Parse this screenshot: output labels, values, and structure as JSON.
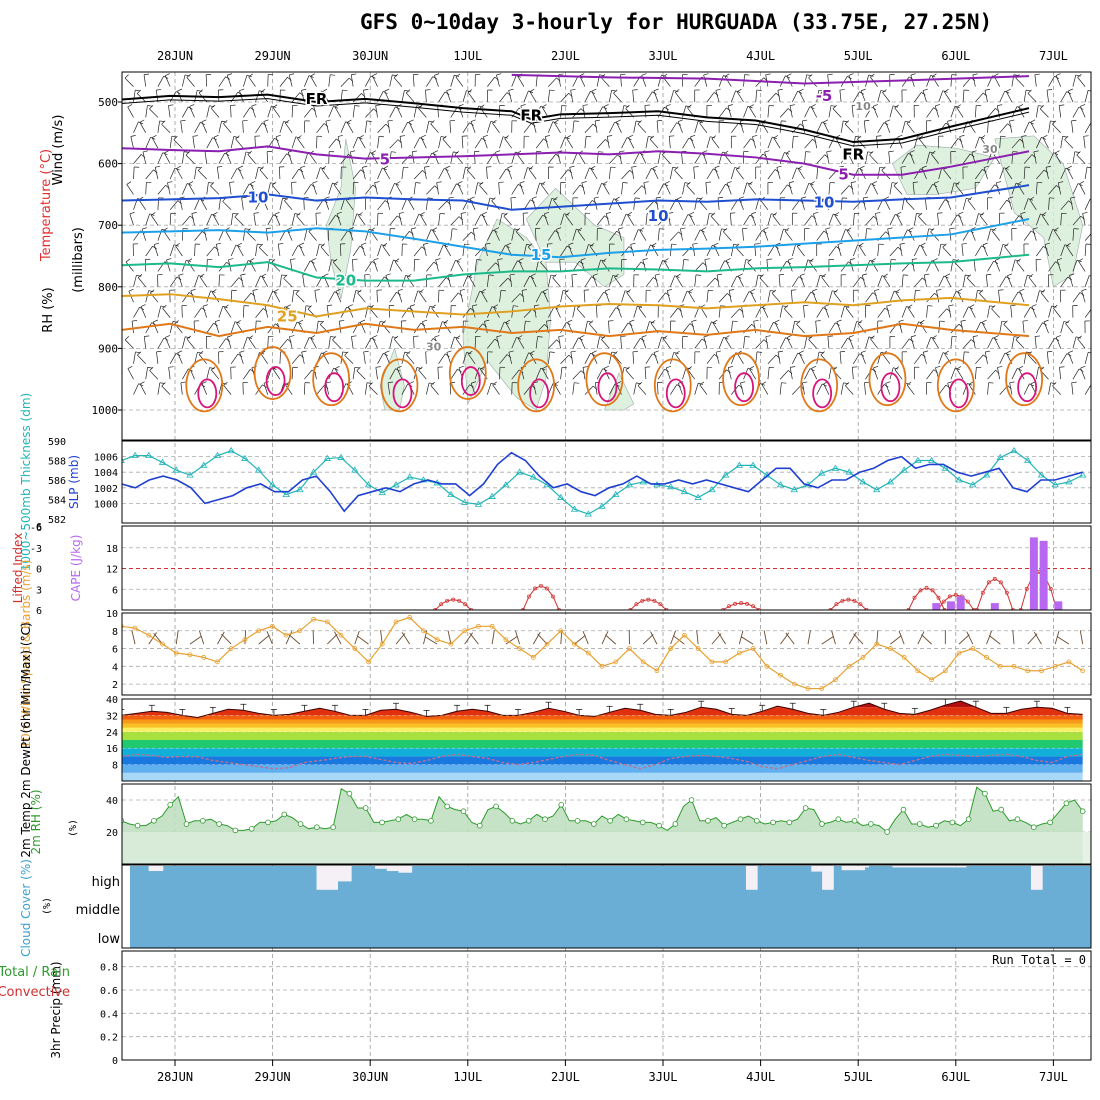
{
  "title": "GFS 0~10day 3-hourly for HURGUADA (33.75E, 27.25N)",
  "colors": {
    "thickness": "#22b4b8",
    "slp": "#1f3fd0",
    "lifted_index": "#d03030",
    "cape": "#b868f0",
    "wind_speed": "#e8a030",
    "barbs": "#6b4a2e",
    "rh": "#2e9a2e",
    "cloud": "#6aaed6",
    "temp_m5": "#8a1fb0",
    "temp_5": "#8a1fb0",
    "temp_10": "#1f4fd0",
    "temp_15": "#1ca0e8",
    "temp_20": "#1cba8a",
    "temp_25": "#e0a020",
    "temp_30": "#e07818",
    "temp_35": "#d8147a"
  },
  "chart_data": [
    {
      "type": "line",
      "panel": "upper-air",
      "x_dates": [
        "28JUN",
        "29JUN",
        "30JUN",
        "1JUL",
        "2JUL",
        "3JUL",
        "4JUL",
        "5JUL",
        "6JUL",
        "7JUL"
      ],
      "y_label_parts": [
        "Wind (m/s)",
        "Temperature (°C)",
        "RH (%)",
        "(millibars)"
      ],
      "yticks": [
        "500",
        "600",
        "700",
        "800",
        "900",
        "1000"
      ],
      "ylim": [
        1000,
        450
      ],
      "isotherm_labels": [
        {
          "text": "FR",
          "x": 2.0,
          "p": 495
        },
        {
          "text": "FR",
          "x": 4.2,
          "p": 522
        },
        {
          "text": "FR",
          "x": 7.5,
          "p": 585
        },
        {
          "text": "-5",
          "x": 7.2,
          "p": 490
        },
        {
          "text": "5",
          "x": 2.7,
          "p": 593
        },
        {
          "text": "5",
          "x": 7.4,
          "p": 618
        },
        {
          "text": "10",
          "x": 1.4,
          "p": 655
        },
        {
          "text": "10",
          "x": 7.2,
          "p": 663
        },
        {
          "text": "15",
          "x": 4.3,
          "p": 748
        },
        {
          "text": "20",
          "x": 2.3,
          "p": 790
        },
        {
          "text": "25",
          "x": 1.7,
          "p": 848
        },
        {
          "text": "10",
          "x": 7.6,
          "p": 505
        },
        {
          "text": "30",
          "x": 8.9,
          "p": 575
        },
        {
          "text": "10",
          "x": 5.5,
          "p": 685
        },
        {
          "text": "30",
          "x": 3.2,
          "p": 895
        }
      ],
      "isotherms": [
        {
          "temp": "-5",
          "color": "#8a1fb0",
          "x": [
            4.0,
            5.0,
            6.0,
            7.0,
            8.0,
            9.3
          ],
          "p": [
            456,
            460,
            462,
            470,
            465,
            458
          ]
        },
        {
          "temp": "FR",
          "color": "#000000",
          "x": [
            0,
            0.5,
            1.0,
            1.5,
            2.0,
            2.5,
            3.0,
            3.5,
            4.0,
            4.2,
            4.5,
            5.0,
            5.5,
            6.0,
            6.5,
            7.0,
            7.5,
            8.0,
            8.5,
            9.3
          ],
          "p": [
            496,
            490,
            492,
            488,
            500,
            495,
            502,
            510,
            515,
            528,
            520,
            518,
            515,
            525,
            530,
            545,
            565,
            560,
            540,
            510
          ]
        },
        {
          "temp": "5",
          "color": "#8a1fb0",
          "x": [
            0,
            0.5,
            1.0,
            1.5,
            2.0,
            2.5,
            3.0,
            3.5,
            4.0,
            4.5,
            5.0,
            5.5,
            6.0,
            6.5,
            7.0,
            7.5,
            8.0,
            8.5,
            9.3
          ],
          "p": [
            575,
            578,
            580,
            572,
            585,
            592,
            590,
            588,
            585,
            582,
            585,
            580,
            584,
            590,
            600,
            618,
            618,
            605,
            580
          ]
        },
        {
          "temp": "10",
          "color": "#1f4fd0",
          "x": [
            0,
            0.5,
            1.0,
            1.5,
            2.0,
            2.5,
            3.0,
            3.5,
            4.0,
            4.5,
            5.0,
            5.5,
            6.0,
            6.5,
            7.0,
            7.5,
            8.0,
            8.5,
            9.3
          ],
          "p": [
            660,
            658,
            656,
            650,
            660,
            655,
            658,
            660,
            675,
            670,
            665,
            660,
            662,
            658,
            660,
            662,
            658,
            655,
            635
          ]
        },
        {
          "temp": "15",
          "color": "#1ca0e8",
          "x": [
            0,
            0.5,
            1.0,
            1.5,
            2.0,
            2.5,
            3.0,
            3.5,
            4.0,
            4.5,
            5.0,
            5.5,
            6.0,
            6.5,
            7.0,
            7.5,
            8.0,
            8.5,
            9.3
          ],
          "p": [
            712,
            710,
            708,
            712,
            705,
            710,
            722,
            735,
            748,
            752,
            745,
            740,
            738,
            735,
            730,
            725,
            720,
            715,
            690
          ]
        },
        {
          "temp": "20",
          "color": "#1cba8a",
          "x": [
            0,
            0.5,
            1.0,
            1.5,
            2.0,
            2.5,
            3.0,
            3.5,
            4.0,
            4.5,
            5.0,
            5.5,
            6.0,
            6.5,
            7.0,
            7.5,
            8.0,
            8.5,
            9.3
          ],
          "p": [
            765,
            762,
            768,
            760,
            785,
            790,
            790,
            780,
            775,
            775,
            770,
            772,
            775,
            770,
            768,
            765,
            762,
            760,
            748
          ]
        },
        {
          "temp": "25",
          "color": "#e0a020",
          "x": [
            0,
            0.5,
            1.0,
            1.5,
            2.0,
            2.5,
            3.0,
            3.5,
            4.0,
            4.5,
            5.0,
            5.5,
            6.0,
            6.5,
            7.0,
            7.5,
            8.0,
            8.5,
            9.3
          ],
          "p": [
            815,
            812,
            820,
            830,
            848,
            835,
            840,
            845,
            840,
            832,
            828,
            830,
            835,
            830,
            825,
            830,
            822,
            818,
            830
          ]
        },
        {
          "temp": "30",
          "color": "#e07818",
          "x": [
            0,
            0.5,
            1.0,
            1.5,
            2.0,
            2.5,
            3.0,
            3.5,
            4.0,
            4.5,
            5.0,
            5.5,
            6.0,
            6.5,
            7.0,
            7.5,
            8.0,
            8.5,
            9.3
          ],
          "p": [
            870,
            860,
            880,
            865,
            875,
            860,
            870,
            865,
            875,
            870,
            880,
            872,
            878,
            870,
            880,
            875,
            860,
            870,
            880
          ]
        }
      ]
    },
    {
      "type": "line",
      "panel": "thickness-slp",
      "y_label": "1000~500mb Thickness (dm)",
      "y2_label": "SLP (mb)",
      "yticks": [
        "590",
        "588",
        "586",
        "584",
        "582"
      ],
      "y2ticks": [
        "1006",
        "1004",
        "1002",
        "1000"
      ],
      "ylim": [
        582,
        590
      ],
      "y2lim": [
        998,
        1008
      ],
      "thickness": [
        588,
        588.5,
        588.5,
        587.8,
        587,
        586.5,
        587.5,
        588.5,
        589,
        588.2,
        587,
        585.5,
        584.5,
        585,
        586.8,
        588.2,
        588.3,
        587,
        585.5,
        584.7,
        585.5,
        586.3,
        586,
        585.7,
        584.5,
        583.7,
        583.5,
        584.3,
        585.5,
        586.8,
        586.3,
        585.5,
        584.2,
        583,
        582.5,
        583.3,
        584.5,
        585.5,
        585.8,
        585.5,
        585.3,
        584.8,
        584.2,
        585,
        586.5,
        587.5,
        587.5,
        586.5,
        585.5,
        585,
        585.5,
        586.7,
        587.2,
        586.8,
        585.8,
        585,
        585.8,
        587,
        588,
        588,
        587.2,
        586,
        585.5,
        586.5,
        588.3,
        589,
        588,
        586.5,
        585.5,
        585.8,
        586.5
      ],
      "slp": [
        1002.5,
        1002,
        1003,
        1003.5,
        1003,
        1002,
        1000,
        1000.5,
        1001,
        1002,
        1002.5,
        1001.5,
        1001.5,
        1003,
        1003.5,
        1001.5,
        999,
        1001,
        1001.5,
        1002,
        1001.5,
        1002.5,
        1003,
        1002.5,
        1002.5,
        1001,
        1002.5,
        1005,
        1006.5,
        1005.5,
        1003.5,
        1002,
        1002.5,
        1001.5,
        1001,
        1002,
        1002.5,
        1003.5,
        1002.5,
        1002.5,
        1003,
        1002.5,
        1003,
        1002.5,
        1002,
        1001.5,
        1003,
        1004.5,
        1004.5,
        1002.5,
        1002,
        1003,
        1003,
        1004,
        1004.5,
        1005.5,
        1006,
        1004.5,
        1005,
        1005,
        1004,
        1003.5,
        1004,
        1004.5,
        1002,
        1001.5,
        1003,
        1003,
        1003.5,
        1004
      ]
    },
    {
      "type": "bar",
      "panel": "lifted-index-cape",
      "y_label": "Lifted Index",
      "y2_label": "CAPE (J/kg)",
      "yticks": [
        "-6",
        "-3",
        "0",
        "3",
        "6"
      ],
      "y2ticks": [
        "18",
        "12",
        "6"
      ],
      "y2lim": [
        0,
        24
      ],
      "lifted_index_humps": [
        [
          3.4,
          4.5
        ],
        [
          4.3,
          2.5
        ],
        [
          5.4,
          4.5
        ],
        [
          6.35,
          5
        ],
        [
          7.45,
          4.5
        ],
        [
          8.25,
          2.8
        ],
        [
          8.55,
          3.8
        ],
        [
          8.95,
          1.5
        ],
        [
          9.4,
          0.5
        ]
      ],
      "cape_bars": [
        [
          8.35,
          2
        ],
        [
          8.5,
          2.5
        ],
        [
          8.6,
          4
        ],
        [
          8.95,
          2
        ],
        [
          9.35,
          21
        ],
        [
          9.45,
          20
        ],
        [
          9.6,
          2.5
        ]
      ]
    },
    {
      "type": "line",
      "panel": "wind-10m",
      "y_label": "10m Wind Speed & Barbs (m/s)",
      "yticks": [
        "10",
        "8",
        "6",
        "4",
        "2"
      ],
      "ylim": [
        1,
        10
      ],
      "values": [
        8.5,
        8.3,
        7.5,
        6.5,
        5.5,
        5.3,
        5,
        4.5,
        6,
        7,
        8,
        8.5,
        7.5,
        8,
        9.3,
        9,
        7.5,
        6,
        4.5,
        6.5,
        9,
        9.5,
        8,
        7,
        6.5,
        8,
        8.5,
        8.5,
        7,
        6,
        5,
        6.5,
        8,
        6.5,
        5.5,
        4,
        4.5,
        6,
        4.5,
        3.5,
        6,
        7.5,
        6,
        4.5,
        4.5,
        5.5,
        6,
        4,
        3,
        2,
        1.5,
        1.5,
        2.5,
        4,
        5,
        6.5,
        6,
        5,
        3.5,
        2.5,
        3.5,
        5.5,
        6,
        5,
        4,
        4,
        3.5,
        3.5,
        4,
        4.5,
        3.5
      ]
    },
    {
      "type": "area",
      "panel": "temp-2m",
      "y_label": "2m Temp 2m DewPt (6hr Min/Max) (°C)",
      "yticks": [
        "40",
        "32",
        "24",
        "16",
        "8"
      ],
      "ylim": [
        0,
        40
      ],
      "temp_max": [
        32,
        33,
        34,
        33.5,
        32,
        31,
        33,
        35,
        34.5,
        33,
        32,
        32.5,
        34,
        35.5,
        34,
        32,
        32,
        34.5,
        35,
        33.5,
        31.5,
        32,
        34,
        35,
        34,
        32,
        32,
        33.5,
        35.5,
        34,
        32,
        31.5,
        33.5,
        35.5,
        34.5,
        32.5,
        32,
        33.5,
        36,
        35,
        32.5,
        32,
        34,
        36.5,
        35,
        33,
        32,
        33.5,
        36,
        38,
        35,
        33,
        32.5,
        34.5,
        37,
        39,
        36,
        33,
        33,
        35,
        36,
        35.5,
        33,
        32.5
      ],
      "dewpoint": [
        12,
        13,
        12.5,
        11.5,
        12,
        11.8,
        10,
        9,
        8,
        7,
        6,
        6.5,
        9,
        10,
        11,
        12,
        12,
        10.5,
        9,
        8.5,
        10,
        12,
        13,
        12,
        11,
        9,
        8,
        9,
        10.5,
        12,
        13,
        12.5,
        10,
        8,
        6,
        8,
        11,
        12,
        12.5,
        12,
        11,
        9.5,
        7,
        6,
        8,
        10,
        12,
        13,
        11.5,
        10,
        9,
        8,
        10,
        12,
        13,
        12.5,
        12,
        12.5,
        13,
        12,
        10,
        9,
        12,
        13
      ]
    },
    {
      "type": "area",
      "panel": "rh-2m",
      "y_label": "2m RH (%)",
      "yticks": [
        "40",
        "20"
      ],
      "ylim": [
        0,
        50
      ],
      "values": [
        27,
        25,
        24,
        24,
        27,
        30,
        37,
        42,
        25,
        27,
        27,
        28,
        25,
        24,
        21,
        21,
        22,
        26,
        26,
        27,
        31,
        29,
        25,
        22,
        23,
        22,
        23,
        47,
        44,
        35,
        35,
        26,
        26,
        27,
        28,
        31,
        28,
        28,
        27,
        42,
        36,
        34,
        33,
        26,
        24,
        34,
        36,
        32,
        27,
        25,
        27,
        31,
        28,
        30,
        37,
        27,
        27,
        27,
        25,
        30,
        27,
        31,
        28,
        27,
        26,
        26,
        24,
        21,
        25,
        36,
        40,
        27,
        27,
        29,
        24,
        26,
        28,
        30,
        27,
        25,
        26,
        27,
        26,
        28,
        35,
        34,
        25,
        26,
        28,
        26,
        27,
        24,
        25,
        24,
        20,
        28,
        34,
        25,
        25,
        23,
        24,
        27,
        26,
        24,
        28,
        48,
        44,
        33,
        34,
        27,
        28,
        26,
        23,
        25,
        26,
        32,
        38,
        40,
        33
      ]
    },
    {
      "type": "heatmap",
      "panel": "cloud-cover",
      "y_label": "Cloud Cover (%)",
      "levels": [
        "high",
        "middle",
        "low"
      ],
      "clear_blocks": [
        [
          0.28,
          0.43,
          0.18
        ],
        [
          2.0,
          2.22,
          0.85
        ],
        [
          2.22,
          2.36,
          0.55
        ],
        [
          2.6,
          2.72,
          0.1
        ],
        [
          2.72,
          2.84,
          0.18
        ],
        [
          2.84,
          2.98,
          0.24
        ],
        [
          6.4,
          6.52,
          0.85
        ],
        [
          7.07,
          7.18,
          0.2
        ],
        [
          7.18,
          7.3,
          0.85
        ],
        [
          7.38,
          7.62,
          0.15
        ],
        [
          7.62,
          7.66,
          0.05
        ],
        [
          7.9,
          8.66,
          0.05
        ],
        [
          9.32,
          9.44,
          0.85
        ]
      ]
    },
    {
      "type": "bar",
      "panel": "precip-3hr",
      "y_label": "3hr Precip (mm)",
      "legend_parts": [
        "Total / Rain",
        "Convective"
      ],
      "run_total": "Run Total = 0",
      "yticks": [
        "0.8",
        "0.6",
        "0.4",
        "0.2",
        "0"
      ],
      "ylim": [
        0,
        0.9
      ],
      "values": []
    }
  ]
}
